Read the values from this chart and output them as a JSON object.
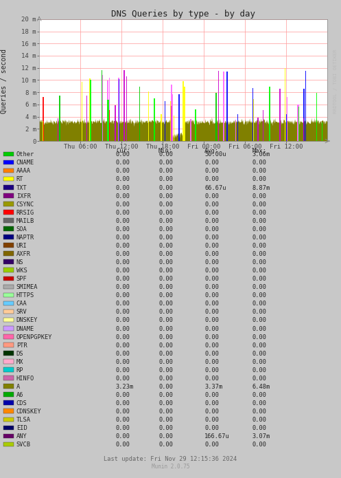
{
  "title": "DNS Queries by type - by day",
  "ylabel": "Queries / second",
  "bg_color": "#c8c8c8",
  "plot_bg_color": "#ffffff",
  "grid_color": "#ff9999",
  "ytick_labels": [
    "0",
    "2 m",
    "4 m",
    "6 m",
    "8 m",
    "10 m",
    "12 m",
    "14 m",
    "16 m",
    "18 m",
    "20 m"
  ],
  "ytick_vals": [
    0,
    2000000,
    4000000,
    6000000,
    8000000,
    10000000,
    12000000,
    14000000,
    16000000,
    18000000,
    20000000
  ],
  "xtick_labels": [
    "Thu 06:00",
    "Thu 12:00",
    "Thu 18:00",
    "Fri 00:00",
    "Fri 06:00",
    "Fri 12:00"
  ],
  "legend": [
    {
      "label": "Other",
      "color": "#00cc00"
    },
    {
      "label": "CNAME",
      "color": "#0000ff"
    },
    {
      "label": "AAAA",
      "color": "#ff7f00"
    },
    {
      "label": "RT",
      "color": "#ffff00"
    },
    {
      "label": "TXT",
      "color": "#1a0080"
    },
    {
      "label": "IXFR",
      "color": "#7f007f"
    },
    {
      "label": "CSYNC",
      "color": "#999900"
    },
    {
      "label": "RRSIG",
      "color": "#ff0000"
    },
    {
      "label": "MAILB",
      "color": "#666666"
    },
    {
      "label": "SOA",
      "color": "#006600"
    },
    {
      "label": "NAPTR",
      "color": "#000080"
    },
    {
      "label": "URI",
      "color": "#804000"
    },
    {
      "label": "AXFR",
      "color": "#806600"
    },
    {
      "label": "NS",
      "color": "#330066"
    },
    {
      "label": "WKS",
      "color": "#99cc00"
    },
    {
      "label": "SPF",
      "color": "#cc0000"
    },
    {
      "label": "SMIMEA",
      "color": "#aaaaaa"
    },
    {
      "label": "HTTPS",
      "color": "#99ff99"
    },
    {
      "label": "CAA",
      "color": "#66ccff"
    },
    {
      "label": "SRV",
      "color": "#ffcc99"
    },
    {
      "label": "DNSKEY",
      "color": "#ffff99"
    },
    {
      "label": "DNAME",
      "color": "#cc99ff"
    },
    {
      "label": "OPENPGPKEY",
      "color": "#ff66aa"
    },
    {
      "label": "PTR",
      "color": "#ff9980"
    },
    {
      "label": "DS",
      "color": "#003300"
    },
    {
      "label": "MX",
      "color": "#ffaacc"
    },
    {
      "label": "RP",
      "color": "#00cccc"
    },
    {
      "label": "HINFO",
      "color": "#cc66aa"
    },
    {
      "label": "A",
      "color": "#808000"
    },
    {
      "label": "A6",
      "color": "#00aa00"
    },
    {
      "label": "CDS",
      "color": "#0000aa"
    },
    {
      "label": "CDNSKEY",
      "color": "#ff8800"
    },
    {
      "label": "TLSA",
      "color": "#cccc00"
    },
    {
      "label": "EID",
      "color": "#000066"
    },
    {
      "label": "ANY",
      "color": "#660066"
    },
    {
      "label": "SVCB",
      "color": "#aacc00"
    }
  ],
  "table_data": [
    [
      "Other",
      "0.00",
      "0.00",
      "50.00u",
      "3.06m"
    ],
    [
      "CNAME",
      "0.00",
      "0.00",
      "0.00",
      "0.00"
    ],
    [
      "AAAA",
      "0.00",
      "0.00",
      "0.00",
      "0.00"
    ],
    [
      "RT",
      "0.00",
      "0.00",
      "0.00",
      "0.00"
    ],
    [
      "TXT",
      "0.00",
      "0.00",
      "66.67u",
      "8.87m"
    ],
    [
      "IXFR",
      "0.00",
      "0.00",
      "0.00",
      "0.00"
    ],
    [
      "CSYNC",
      "0.00",
      "0.00",
      "0.00",
      "0.00"
    ],
    [
      "RRSIG",
      "0.00",
      "0.00",
      "0.00",
      "0.00"
    ],
    [
      "MAILB",
      "0.00",
      "0.00",
      "0.00",
      "0.00"
    ],
    [
      "SOA",
      "0.00",
      "0.00",
      "0.00",
      "0.00"
    ],
    [
      "NAPTR",
      "0.00",
      "0.00",
      "0.00",
      "0.00"
    ],
    [
      "URI",
      "0.00",
      "0.00",
      "0.00",
      "0.00"
    ],
    [
      "AXFR",
      "0.00",
      "0.00",
      "0.00",
      "0.00"
    ],
    [
      "NS",
      "0.00",
      "0.00",
      "0.00",
      "0.00"
    ],
    [
      "WKS",
      "0.00",
      "0.00",
      "0.00",
      "0.00"
    ],
    [
      "SPF",
      "0.00",
      "0.00",
      "0.00",
      "0.00"
    ],
    [
      "SMIMEA",
      "0.00",
      "0.00",
      "0.00",
      "0.00"
    ],
    [
      "HTTPS",
      "0.00",
      "0.00",
      "0.00",
      "0.00"
    ],
    [
      "CAA",
      "0.00",
      "0.00",
      "0.00",
      "0.00"
    ],
    [
      "SRV",
      "0.00",
      "0.00",
      "0.00",
      "0.00"
    ],
    [
      "DNSKEY",
      "0.00",
      "0.00",
      "0.00",
      "0.00"
    ],
    [
      "DNAME",
      "0.00",
      "0.00",
      "0.00",
      "0.00"
    ],
    [
      "OPENPGPKEY",
      "0.00",
      "0.00",
      "0.00",
      "0.00"
    ],
    [
      "PTR",
      "0.00",
      "0.00",
      "0.00",
      "0.00"
    ],
    [
      "DS",
      "0.00",
      "0.00",
      "0.00",
      "0.00"
    ],
    [
      "MX",
      "0.00",
      "0.00",
      "0.00",
      "0.00"
    ],
    [
      "RP",
      "0.00",
      "0.00",
      "0.00",
      "0.00"
    ],
    [
      "HINFO",
      "0.00",
      "0.00",
      "0.00",
      "0.00"
    ],
    [
      "A",
      "3.23m",
      "0.00",
      "3.37m",
      "6.48m"
    ],
    [
      "A6",
      "0.00",
      "0.00",
      "0.00",
      "0.00"
    ],
    [
      "CDS",
      "0.00",
      "0.00",
      "0.00",
      "0.00"
    ],
    [
      "CDNSKEY",
      "0.00",
      "0.00",
      "0.00",
      "0.00"
    ],
    [
      "TLSA",
      "0.00",
      "0.00",
      "0.00",
      "0.00"
    ],
    [
      "EID",
      "0.00",
      "0.00",
      "0.00",
      "0.00"
    ],
    [
      "ANY",
      "0.00",
      "0.00",
      "166.67u",
      "3.07m"
    ],
    [
      "SVCB",
      "0.00",
      "0.00",
      "0.00",
      "0.00"
    ]
  ],
  "footer": "Last update: Fri Nov 29 12:15:36 2024",
  "munin_version": "Munin 2.0.75",
  "rrdtool_text": "RRDTOOL / TOBI OETIKER"
}
